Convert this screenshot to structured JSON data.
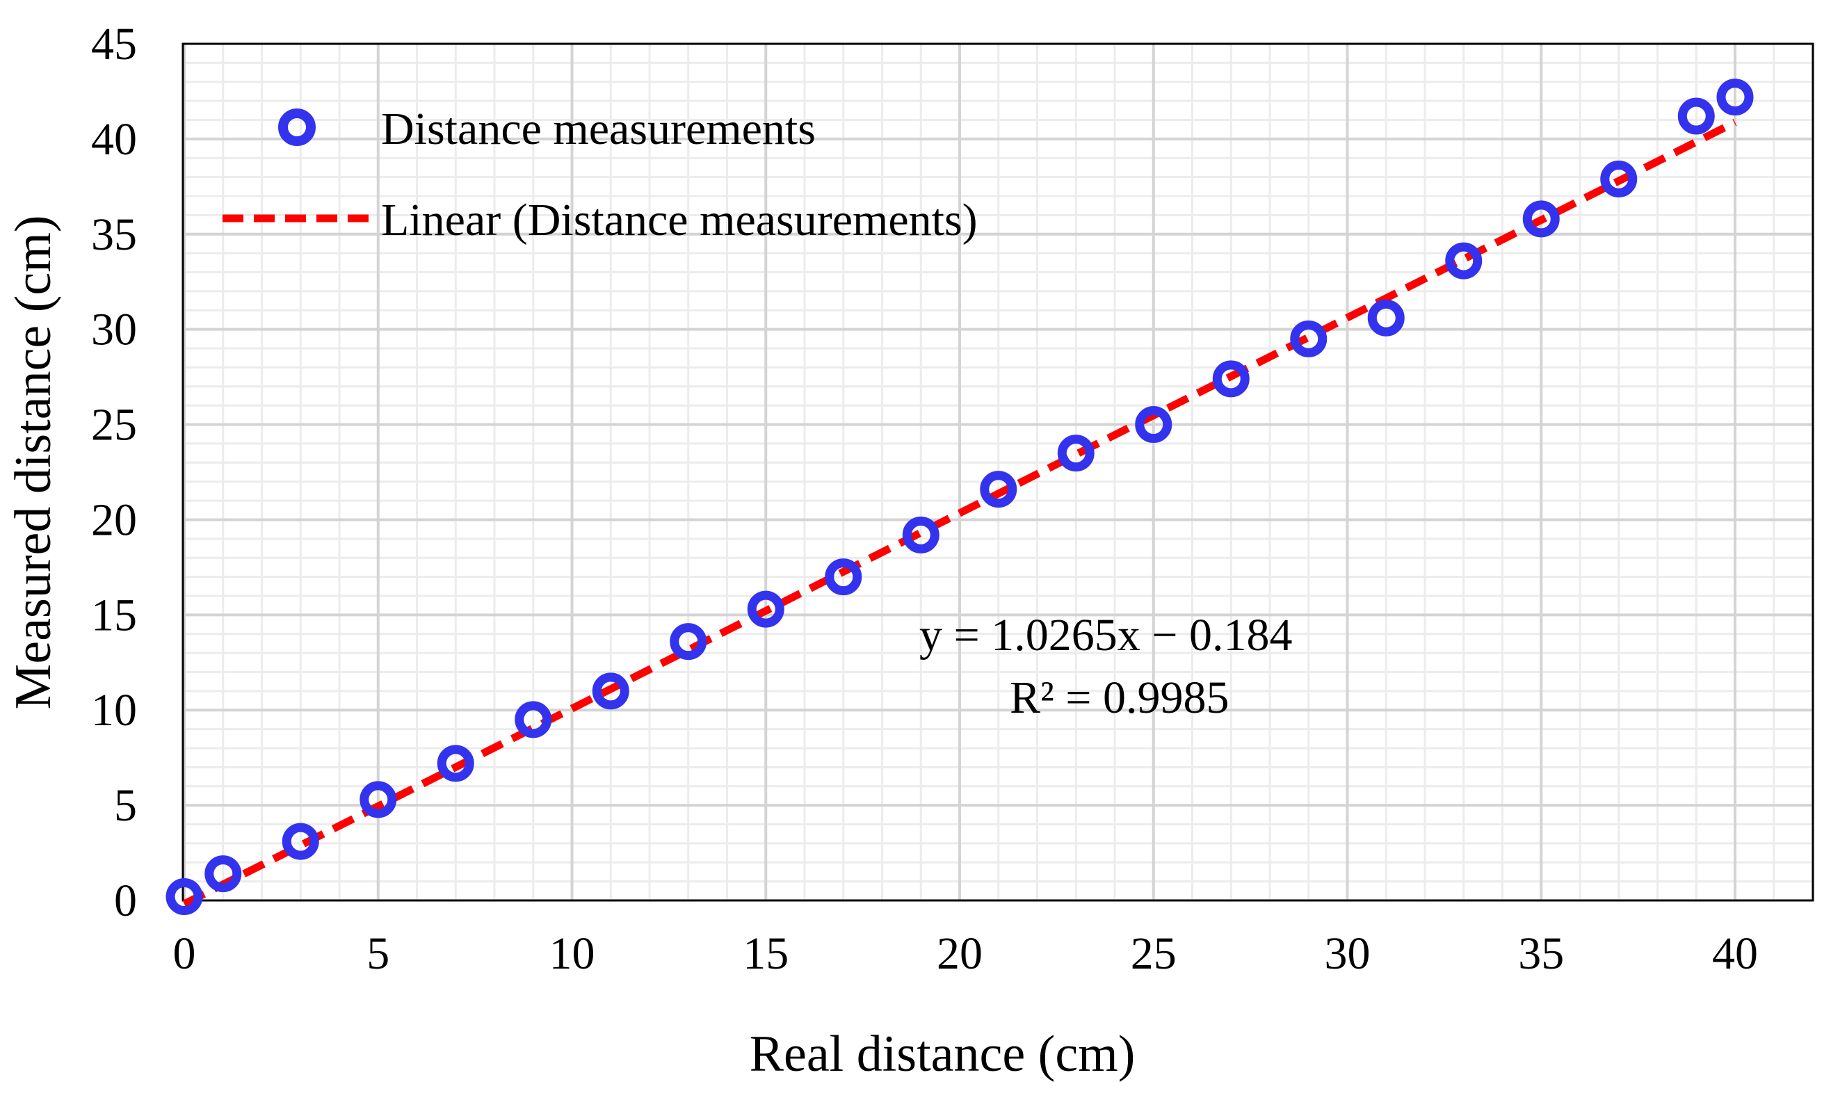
{
  "chart_data": {
    "type": "scatter",
    "title": "",
    "xlabel": "Real distance  (cm)",
    "ylabel": "Measured  distance  (cm)",
    "xlim": [
      0,
      40
    ],
    "ylim": [
      0,
      45
    ],
    "x_major_step": 5,
    "x_minor_step": 1,
    "y_major_step": 5,
    "y_minor_step": 1,
    "x_ticks": [
      "0",
      "5",
      "10",
      "15",
      "20",
      "25",
      "30",
      "35",
      "40"
    ],
    "y_ticks": [
      "0",
      "5",
      "10",
      "15",
      "20",
      "25",
      "30",
      "35",
      "40",
      "45"
    ],
    "grid": true,
    "legend_position": "top-left",
    "series": [
      {
        "name": "Distance measurements",
        "marker": "open-circle",
        "color": "#3333ee",
        "x": [
          0,
          1,
          3,
          5,
          7,
          9,
          11,
          13,
          15,
          17,
          19,
          21,
          23,
          25,
          27,
          29,
          31,
          33,
          35,
          37,
          39,
          40
        ],
        "y": [
          0.2,
          1.4,
          3.1,
          5.3,
          7.2,
          9.5,
          11.0,
          13.6,
          15.3,
          17.0,
          19.2,
          21.6,
          23.5,
          25.0,
          27.4,
          29.5,
          30.6,
          33.6,
          35.8,
          37.9,
          41.2,
          42.2
        ]
      }
    ],
    "trendline": {
      "name": "Linear (Distance measurements)",
      "style": "dashed",
      "color": "#ff0000",
      "slope": 1.0265,
      "intercept": -0.184,
      "x_range": [
        0,
        40
      ],
      "equation": "y = 1.0265x − 0.184",
      "r_squared": "R² = 0.9985"
    }
  }
}
